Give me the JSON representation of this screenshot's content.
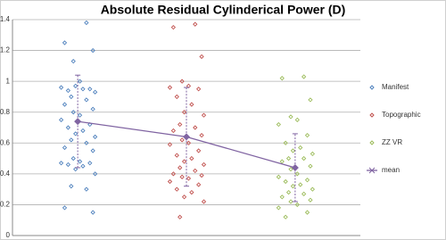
{
  "chart_data": {
    "type": "scatter",
    "title": "Absolute Residual Cylinderical Power (D)",
    "xlim": [
      0,
      8
    ],
    "ylim": [
      0,
      1.4
    ],
    "yticks": [
      0,
      0.2,
      0.4,
      0.6,
      0.8,
      1,
      1.2,
      1.4
    ],
    "grid": true,
    "legend": "right",
    "series": [
      {
        "name": "Manifest",
        "color": "#4f81bd",
        "x": [
          1.7,
          1.2,
          1.85,
          1.4,
          1.55,
          1.12,
          1.78,
          1.28,
          1.62,
          1.45,
          1.9,
          1.35,
          1.7,
          1.2,
          1.85,
          1.4,
          1.55,
          1.12,
          1.78,
          1.28,
          1.62,
          1.45,
          1.9,
          1.35,
          1.7,
          1.2,
          1.85,
          1.4,
          1.55,
          1.12,
          1.78,
          1.28,
          1.62,
          1.45,
          1.9,
          1.35,
          1.7,
          1.2,
          1.85
        ],
        "values": [
          1.38,
          1.25,
          1.2,
          1.13,
          1.0,
          0.96,
          0.95,
          0.94,
          0.95,
          0.97,
          0.93,
          0.9,
          0.88,
          0.85,
          0.82,
          0.8,
          0.78,
          0.75,
          0.72,
          0.7,
          0.68,
          0.66,
          0.64,
          0.62,
          0.6,
          0.57,
          0.55,
          0.5,
          0.48,
          0.47,
          0.47,
          0.46,
          0.45,
          0.43,
          0.4,
          0.32,
          0.3,
          0.18,
          0.15
        ]
      },
      {
        "name": "Topographic",
        "color": "#c0504d",
        "x": [
          4.2,
          3.7,
          4.35,
          3.9,
          4.05,
          3.62,
          4.28,
          3.78,
          4.12,
          3.95,
          4.4,
          3.85,
          4.2,
          3.7,
          4.35,
          3.9,
          4.05,
          3.62,
          4.28,
          3.78,
          4.12,
          3.95,
          4.4,
          3.85,
          4.2,
          3.7,
          4.35,
          3.9,
          4.05,
          3.62,
          4.28,
          3.78,
          4.12,
          3.95,
          4.4,
          3.85
        ],
        "values": [
          1.37,
          1.35,
          1.16,
          1.0,
          0.97,
          0.96,
          0.95,
          0.9,
          0.85,
          0.8,
          0.78,
          0.72,
          0.7,
          0.68,
          0.65,
          0.62,
          0.6,
          0.59,
          0.55,
          0.52,
          0.5,
          0.48,
          0.46,
          0.44,
          0.42,
          0.4,
          0.39,
          0.38,
          0.37,
          0.35,
          0.33,
          0.3,
          0.28,
          0.25,
          0.22,
          0.12
        ]
      },
      {
        "name": "ZZ VR",
        "color": "#9bbb59",
        "x": [
          6.7,
          6.2,
          6.85,
          6.4,
          6.55,
          6.12,
          6.78,
          6.28,
          6.62,
          6.45,
          6.9,
          6.35,
          6.7,
          6.2,
          6.85,
          6.4,
          6.55,
          6.12,
          6.78,
          6.28,
          6.62,
          6.45,
          6.9,
          6.35,
          6.7,
          6.2,
          6.85,
          6.4,
          6.55,
          6.12,
          6.78,
          6.28
        ],
        "values": [
          1.03,
          1.02,
          0.88,
          0.77,
          0.75,
          0.72,
          0.65,
          0.6,
          0.57,
          0.55,
          0.53,
          0.5,
          0.5,
          0.48,
          0.45,
          0.43,
          0.4,
          0.38,
          0.36,
          0.35,
          0.33,
          0.32,
          0.3,
          0.28,
          0.27,
          0.25,
          0.23,
          0.22,
          0.2,
          0.18,
          0.15,
          0.12
        ]
      },
      {
        "name": "mean",
        "color": "#8064a2",
        "line": true,
        "x": [
          1.5,
          4,
          6.5
        ],
        "values": [
          0.74,
          0.64,
          0.44
        ],
        "errors": [
          0.3,
          0.32,
          0.22
        ]
      }
    ]
  }
}
